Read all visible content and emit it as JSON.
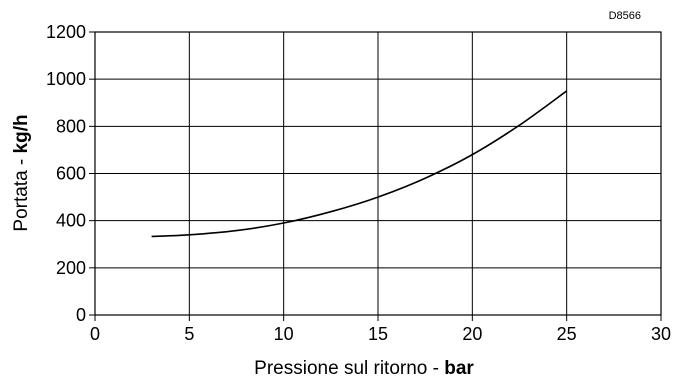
{
  "chart_data": {
    "type": "line",
    "code": "D8566",
    "xlabel": {
      "text": "Pressione sul ritorno - ",
      "unit": "bar"
    },
    "ylabel": {
      "text": "Portata - ",
      "unit": "kg/h"
    },
    "xlim": [
      0,
      30
    ],
    "ylim": [
      0,
      1200
    ],
    "x_ticks": [
      "0",
      "5",
      "10",
      "15",
      "20",
      "25",
      "30"
    ],
    "y_ticks": [
      "0",
      "200",
      "400",
      "600",
      "800",
      "1000",
      "1200"
    ],
    "grid": true,
    "series": [
      {
        "x": [
          3,
          5,
          7.5,
          10,
          12.5,
          15,
          17.5,
          20,
          22.5,
          25
        ],
        "y": [
          333,
          340,
          358,
          390,
          438,
          500,
          580,
          680,
          805,
          950
        ]
      }
    ]
  }
}
